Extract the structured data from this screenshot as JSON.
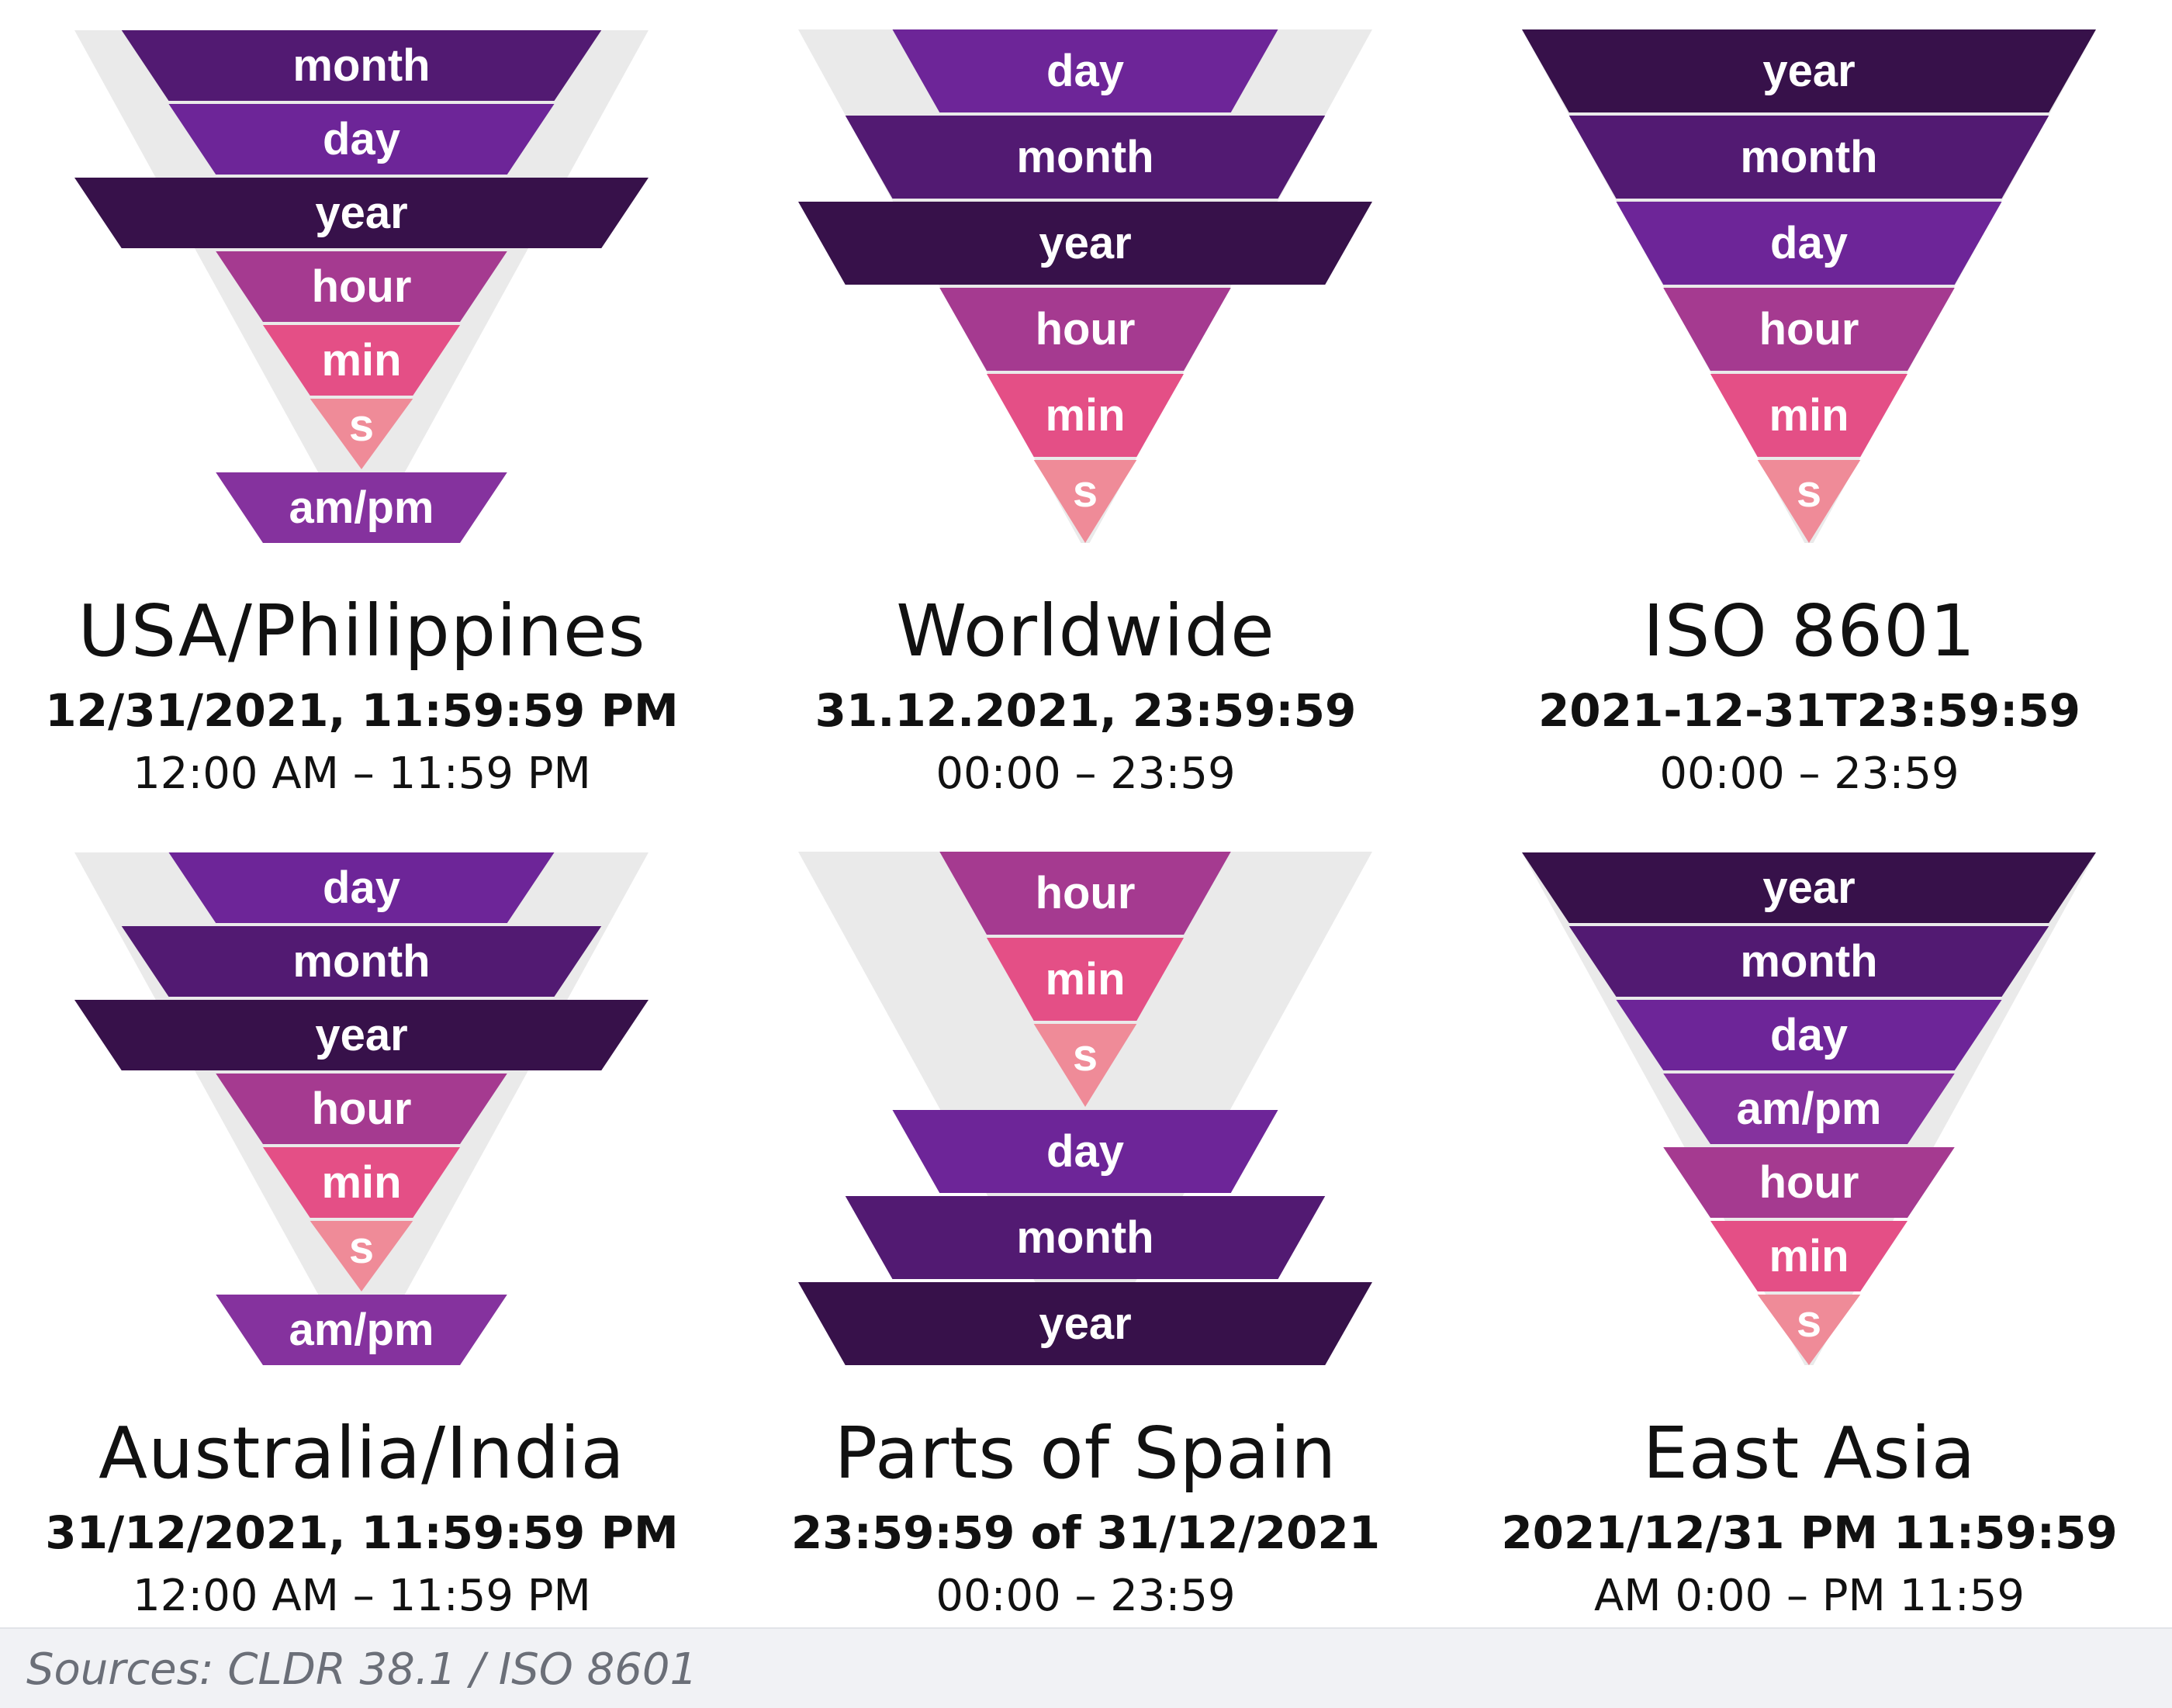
{
  "colors": {
    "year": "#37114a",
    "month": "#521a72",
    "day": "#6d2598",
    "hour": "#a53a90",
    "min": "#e44f86",
    "s": "#ef8b98",
    "am_pm": "#85329e",
    "ghost": "#eaeaea"
  },
  "panels": [
    {
      "region": "USA/Philippines",
      "example": "12/31/2021, 11:59:59 PM",
      "range": "12:00 AM – 11:59 PM",
      "rows": [
        {
          "label": "month",
          "key": "month"
        },
        {
          "label": "day",
          "key": "day"
        },
        {
          "label": "year",
          "key": "year"
        },
        {
          "label": "hour",
          "key": "hour"
        },
        {
          "label": "min",
          "key": "min"
        },
        {
          "label": "s",
          "key": "s"
        },
        {
          "label": "am/pm",
          "key": "am_pm"
        }
      ]
    },
    {
      "region": "Worldwide",
      "example": "31.12.2021, 23:59:59",
      "range": "00:00 – 23:59",
      "rows": [
        {
          "label": "day",
          "key": "day"
        },
        {
          "label": "month",
          "key": "month"
        },
        {
          "label": "year",
          "key": "year"
        },
        {
          "label": "hour",
          "key": "hour"
        },
        {
          "label": "min",
          "key": "min"
        },
        {
          "label": "s",
          "key": "s"
        }
      ]
    },
    {
      "region": "ISO 8601",
      "example": "2021-12-31T23:59:59",
      "range": "00:00 – 23:59",
      "rows": [
        {
          "label": "year",
          "key": "year"
        },
        {
          "label": "month",
          "key": "month"
        },
        {
          "label": "day",
          "key": "day"
        },
        {
          "label": "hour",
          "key": "hour"
        },
        {
          "label": "min",
          "key": "min"
        },
        {
          "label": "s",
          "key": "s"
        }
      ]
    },
    {
      "region": "Australia/India",
      "example": "31/12/2021, 11:59:59 PM",
      "range": "12:00 AM – 11:59 PM",
      "rows": [
        {
          "label": "day",
          "key": "day"
        },
        {
          "label": "month",
          "key": "month"
        },
        {
          "label": "year",
          "key": "year"
        },
        {
          "label": "hour",
          "key": "hour"
        },
        {
          "label": "min",
          "key": "min"
        },
        {
          "label": "s",
          "key": "s"
        },
        {
          "label": "am/pm",
          "key": "am_pm"
        }
      ]
    },
    {
      "region": "Parts of Spain",
      "example": "23:59:59 of 31/12/2021",
      "range": "00:00 – 23:59",
      "rows": [
        {
          "label": "hour",
          "key": "hour"
        },
        {
          "label": "min",
          "key": "min"
        },
        {
          "label": "s",
          "key": "s"
        },
        {
          "label": "day",
          "key": "day"
        },
        {
          "label": "month",
          "key": "month"
        },
        {
          "label": "year",
          "key": "year"
        }
      ]
    },
    {
      "region": "East Asia",
      "example": "2021/12/31 PM 11:59:59",
      "range": "AM 0:00 – PM 11:59",
      "rows": [
        {
          "label": "year",
          "key": "year"
        },
        {
          "label": "month",
          "key": "month"
        },
        {
          "label": "day",
          "key": "day"
        },
        {
          "label": "am/pm",
          "key": "am_pm"
        },
        {
          "label": "hour",
          "key": "hour"
        },
        {
          "label": "min",
          "key": "min"
        },
        {
          "label": "s",
          "key": "s"
        }
      ]
    }
  ],
  "footer": {
    "source": "Sources: CLDR 38.1 / ISO 8601"
  }
}
